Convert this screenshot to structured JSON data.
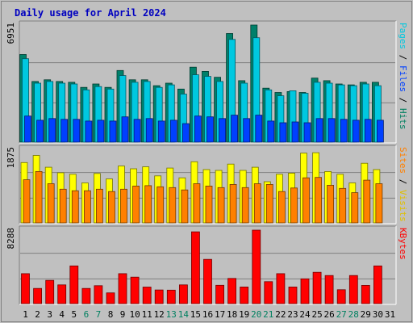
{
  "chart_data": {
    "type": "bar",
    "title": "Daily usage for April 2024",
    "days": [
      "1",
      "2",
      "3",
      "4",
      "5",
      "6",
      "7",
      "8",
      "9",
      "10",
      "11",
      "12",
      "13",
      "14",
      "15",
      "16",
      "17",
      "18",
      "19",
      "20",
      "21",
      "22",
      "23",
      "24",
      "25",
      "26",
      "27",
      "28",
      "29",
      "30",
      "31"
    ],
    "weekend_days": [
      "6",
      "7",
      "13",
      "14",
      "20",
      "21",
      "27",
      "28"
    ],
    "panels": [
      {
        "key": "top",
        "ymax_label": "6951",
        "ymax": 6951,
        "right_label": [
          {
            "text": "Pages",
            "color": "#00c8e0"
          },
          {
            "text": " / ",
            "color": "#000000"
          },
          {
            "text": "Files",
            "color": "#0040ff"
          },
          {
            "text": " / ",
            "color": "#000000"
          },
          {
            "text": "Hits",
            "color": "#008060"
          }
        ],
        "series": [
          {
            "name": "Hits",
            "color": "#00806a",
            "values": [
              5200,
              3600,
              3700,
              3600,
              3550,
              3250,
              3450,
              3250,
              4250,
              3700,
              3700,
              3350,
              3500,
              3150,
              4450,
              4200,
              3850,
              6450,
              3650,
              6950,
              3200,
              2950,
              3000,
              2950,
              3800,
              3650,
              3450,
              3400,
              3550,
              3550,
              0
            ]
          },
          {
            "name": "Files",
            "color": "#00c8e0",
            "values": [
              4950,
              3500,
              3600,
              3500,
              3450,
              3100,
              3300,
              3150,
              3950,
              3550,
              3600,
              3250,
              3400,
              2850,
              4000,
              3900,
              3600,
              6100,
              3500,
              6200,
              3100,
              2750,
              3050,
              2900,
              3550,
              3500,
              3400,
              3350,
              3450,
              3350,
              0
            ]
          },
          {
            "name": "Pages",
            "color": "#0040ff",
            "values": [
              1550,
              1300,
              1400,
              1350,
              1350,
              1250,
              1300,
              1250,
              1500,
              1350,
              1400,
              1250,
              1300,
              1100,
              1550,
              1500,
              1400,
              1600,
              1400,
              1600,
              1250,
              1150,
              1200,
              1150,
              1400,
              1400,
              1350,
              1300,
              1350,
              1300,
              0
            ]
          }
        ]
      },
      {
        "key": "mid",
        "ymax_label": "1875",
        "ymax": 1875,
        "right_label": [
          {
            "text": "Sites",
            "color": "#ff8000"
          },
          {
            "text": " / ",
            "color": "#000000"
          },
          {
            "text": "Visits",
            "color": "#e0c000"
          }
        ],
        "series": [
          {
            "name": "Visits",
            "color": "#ffff00",
            "values": [
              1540,
              1720,
              1420,
              1280,
              1240,
              1020,
              1260,
              1120,
              1450,
              1380,
              1430,
              1200,
              1400,
              1150,
              1560,
              1360,
              1340,
              1500,
              1340,
              1420,
              1050,
              1240,
              1270,
              1780,
              1790,
              1310,
              1240,
              1020,
              1520,
              1360,
              0
            ]
          },
          {
            "name": "Sites",
            "color": "#ff8000",
            "values": [
              1100,
              1310,
              1000,
              860,
              820,
              820,
              860,
              800,
              860,
              940,
              950,
              920,
              900,
              840,
              1000,
              940,
              900,
              980,
              900,
              1000,
              980,
              800,
              890,
              1150,
              1160,
              960,
              880,
              770,
              1090,
              1000,
              0
            ]
          }
        ]
      },
      {
        "key": "bot",
        "ymax_label": "8288",
        "ymax": 8288,
        "right_label": [
          {
            "text": "KBytes",
            "color": "#ff0000"
          }
        ],
        "series": [
          {
            "name": "KBytes",
            "color": "#ff0000",
            "values": [
              3380,
              1710,
              2620,
              2110,
              4250,
              1710,
              2020,
              1210,
              3380,
              2990,
              1870,
              1540,
              1520,
              2110,
              8100,
              4990,
              2070,
              2840,
              1880,
              8288,
              2480,
              3380,
              1880,
              2800,
              3530,
              3170,
              1570,
              3170,
              2060,
              4250,
              0
            ]
          }
        ]
      }
    ]
  }
}
